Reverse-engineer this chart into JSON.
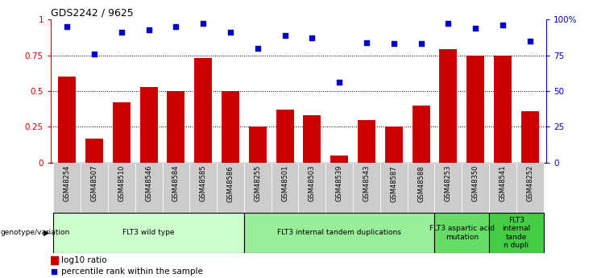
{
  "title": "GDS2242 / 9625",
  "samples": [
    "GSM48254",
    "GSM48507",
    "GSM48510",
    "GSM48546",
    "GSM48584",
    "GSM48585",
    "GSM48586",
    "GSM48255",
    "GSM48501",
    "GSM48503",
    "GSM48539",
    "GSM48543",
    "GSM48587",
    "GSM48588",
    "GSM48253",
    "GSM48350",
    "GSM48541",
    "GSM48252"
  ],
  "bar_values": [
    0.6,
    0.17,
    0.42,
    0.53,
    0.5,
    0.73,
    0.5,
    0.25,
    0.37,
    0.33,
    0.05,
    0.3,
    0.25,
    0.4,
    0.79,
    0.75,
    0.75,
    0.36
  ],
  "dot_values": [
    0.95,
    0.76,
    0.91,
    0.93,
    0.95,
    0.97,
    0.91,
    0.8,
    0.89,
    0.87,
    0.56,
    0.84,
    0.83,
    0.83,
    0.97,
    0.94,
    0.96,
    0.85
  ],
  "bar_color": "#cc0000",
  "dot_color": "#0000cc",
  "groups": [
    {
      "label": "FLT3 wild type",
      "start": 0,
      "end": 6,
      "color": "#ccffcc"
    },
    {
      "label": "FLT3 internal tandem duplications",
      "start": 7,
      "end": 13,
      "color": "#99ee99"
    },
    {
      "label": "FLT3 aspartic acid\nmutation",
      "start": 14,
      "end": 15,
      "color": "#66dd66"
    },
    {
      "label": "FLT3\ninternal\ntande\nn dupli",
      "start": 16,
      "end": 17,
      "color": "#44cc44"
    }
  ],
  "yticks_left": [
    0,
    0.25,
    0.5,
    0.75,
    1.0
  ],
  "ytick_labels_left": [
    "0",
    "0.25",
    "0.5",
    "0.75",
    "1"
  ],
  "yticks_right": [
    0,
    25,
    50,
    75,
    100
  ],
  "ytick_labels_right": [
    "0",
    "25",
    "50",
    "75",
    "100%"
  ],
  "genotype_label": "genotype/variation",
  "legend_bar": "log10 ratio",
  "legend_dot": "percentile rank within the sample",
  "tick_label_bg": "#cccccc"
}
